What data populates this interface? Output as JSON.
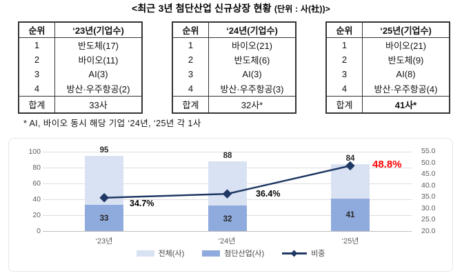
{
  "title": {
    "main": "<최근 3년 첨단산업 신규상장 현황 ",
    "unit": "(단위 : 사(社))>"
  },
  "tables": [
    {
      "headers": [
        "순위",
        "‘23년(기업수)"
      ],
      "rows": [
        [
          "1",
          "반도체(17)"
        ],
        [
          "2",
          "바이오(11)"
        ],
        [
          "3",
          "AI(3)"
        ],
        [
          "4",
          "방산·우주항공(2)"
        ]
      ],
      "total": [
        "합계",
        "33사"
      ]
    },
    {
      "headers": [
        "순위",
        "‘24년(기업수)"
      ],
      "rows": [
        [
          "1",
          "바이오(21)"
        ],
        [
          "2",
          "반도체(6)"
        ],
        [
          "3",
          "AI(3)"
        ],
        [
          "4",
          "방산·우주항공(3)"
        ]
      ],
      "total": [
        "합계",
        "32사*"
      ]
    },
    {
      "headers": [
        "순위",
        "‘25년(기업수)"
      ],
      "rows": [
        [
          "1",
          "바이오(21)"
        ],
        [
          "2",
          "반도체(9)"
        ],
        [
          "3",
          "AI(8)"
        ],
        [
          "4",
          "방산·우주항공(4)"
        ]
      ],
      "total": [
        "합계",
        "41사*"
      ]
    }
  ],
  "footnote": "* AI, 바이오 동시 해당 기업 ‘24년, ‘25년 각 1사",
  "chart_data": {
    "type": "bar+line",
    "categories": [
      "‘23년",
      "‘24년",
      "‘25년"
    ],
    "series": [
      {
        "name": "전체(사)",
        "type": "bar",
        "values": [
          95,
          88,
          84
        ],
        "labels": [
          "95",
          "88",
          "84"
        ],
        "color": "#D9E2F3"
      },
      {
        "name": "첨단산업(사)",
        "type": "bar",
        "values": [
          33,
          32,
          41
        ],
        "labels": [
          "33",
          "32",
          "41"
        ],
        "color": "#8FAADC"
      },
      {
        "name": "비중",
        "type": "line",
        "values": [
          34.7,
          36.4,
          48.8
        ],
        "labels": [
          "34.7%",
          "36.4%",
          "48.8%"
        ],
        "color": "#1F3864",
        "highlight_color": "#FF0000"
      }
    ],
    "left_axis": {
      "min": 0,
      "max": 100,
      "step": 20,
      "ticks": [
        "100",
        "80",
        "60",
        "40",
        "20",
        "0"
      ]
    },
    "right_axis": {
      "min": 20,
      "max": 55,
      "step": 5,
      "ticks": [
        "55.0",
        "50.0",
        "45.0",
        "40.0",
        "35.0",
        "30.0",
        "25.0",
        "20.0"
      ]
    },
    "legend_position": "bottom",
    "grid": true
  }
}
